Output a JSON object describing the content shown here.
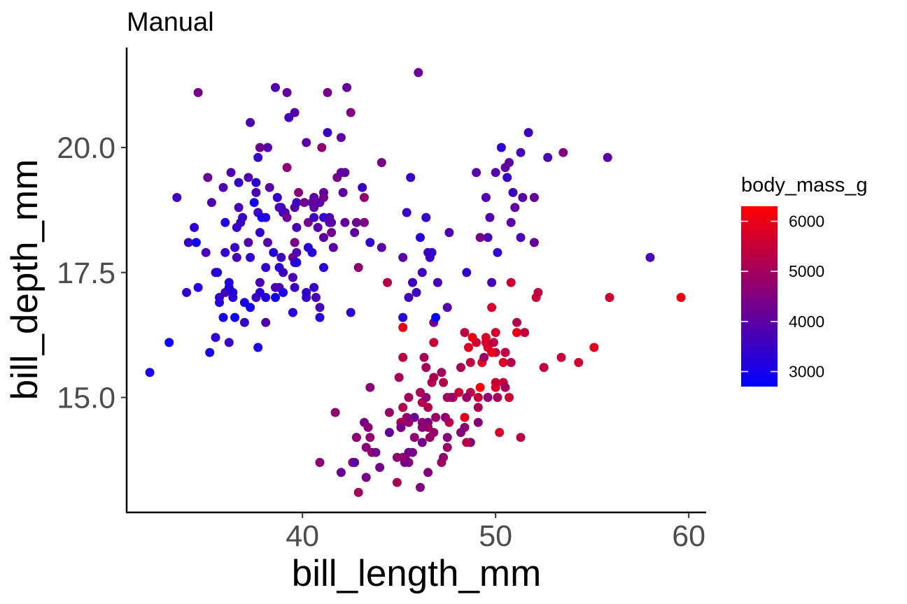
{
  "chart_data": {
    "type": "scatter",
    "title": "Manual",
    "xlabel": "bill_length_mm",
    "ylabel": "bill_depth_mm",
    "xlim": [
      30.9,
      60.9
    ],
    "ylim": [
      12.7,
      22.0
    ],
    "x_ticks": [
      {
        "value": 40,
        "label": "40"
      },
      {
        "value": 50,
        "label": "50"
      },
      {
        "value": 60,
        "label": "60"
      }
    ],
    "y_ticks": [
      {
        "value": 15.0,
        "label": "15.0"
      },
      {
        "value": 17.5,
        "label": "17.5"
      },
      {
        "value": 20.0,
        "label": "20.0"
      }
    ],
    "grid": false,
    "color_scale": {
      "variable": "body_mass_g",
      "low_color": "#0000ff",
      "high_color": "#ff0000",
      "range": [
        2700,
        6300
      ],
      "breaks": [
        {
          "value": 3000,
          "label": "3000"
        },
        {
          "value": 4000,
          "label": "4000"
        },
        {
          "value": 5000,
          "label": "5000"
        },
        {
          "value": 6000,
          "label": "6000"
        }
      ],
      "legend_position": "right"
    },
    "points": [
      [
        32.1,
        15.5,
        3050
      ],
      [
        33.1,
        16.1,
        2900
      ],
      [
        33.5,
        19.0,
        3600
      ],
      [
        34.0,
        17.1,
        3400
      ],
      [
        34.1,
        18.1,
        3475
      ],
      [
        34.4,
        18.4,
        3325
      ],
      [
        34.5,
        18.1,
        2900
      ],
      [
        34.6,
        21.1,
        4400
      ],
      [
        34.6,
        17.2,
        3200
      ],
      [
        35.0,
        17.9,
        3725
      ],
      [
        35.1,
        19.4,
        4200
      ],
      [
        35.2,
        15.9,
        3050
      ],
      [
        35.3,
        18.9,
        3800
      ],
      [
        35.5,
        16.2,
        3350
      ],
      [
        35.5,
        17.5,
        3700
      ],
      [
        35.6,
        17.5,
        3175
      ],
      [
        35.7,
        16.9,
        3150
      ],
      [
        35.7,
        17.0,
        3350
      ],
      [
        35.9,
        16.6,
        3050
      ],
      [
        35.9,
        19.2,
        3800
      ],
      [
        36.0,
        18.5,
        3100
      ],
      [
        36.0,
        17.9,
        3450
      ],
      [
        36.0,
        17.1,
        3700
      ],
      [
        36.2,
        16.1,
        3550
      ],
      [
        36.2,
        17.3,
        3300
      ],
      [
        36.2,
        17.2,
        3150
      ],
      [
        36.3,
        19.5,
        3800
      ],
      [
        36.4,
        17.0,
        3325
      ],
      [
        36.4,
        17.1,
        3250
      ],
      [
        36.5,
        16.6,
        2850
      ],
      [
        36.5,
        18.0,
        3500
      ],
      [
        36.6,
        17.8,
        3700
      ],
      [
        36.6,
        18.4,
        3475
      ],
      [
        36.7,
        19.3,
        3450
      ],
      [
        36.7,
        18.8,
        3700
      ],
      [
        36.8,
        18.5,
        3500
      ],
      [
        36.9,
        18.6,
        3500
      ],
      [
        37.0,
        16.9,
        3000
      ],
      [
        37.0,
        16.5,
        3400
      ],
      [
        37.2,
        19.4,
        3900
      ],
      [
        37.2,
        18.1,
        3900
      ],
      [
        37.3,
        17.8,
        3350
      ],
      [
        37.3,
        16.8,
        3000
      ],
      [
        37.3,
        20.5,
        3775
      ],
      [
        37.5,
        18.9,
        2975
      ],
      [
        37.6,
        19.1,
        3750
      ],
      [
        37.6,
        17.0,
        3600
      ],
      [
        37.6,
        19.3,
        3300
      ],
      [
        37.7,
        18.7,
        3600
      ],
      [
        37.7,
        16.0,
        3075
      ],
      [
        37.7,
        19.8,
        3500
      ],
      [
        37.8,
        18.3,
        3400
      ],
      [
        37.8,
        17.1,
        3300
      ],
      [
        37.8,
        17.3,
        3700
      ],
      [
        37.8,
        20.0,
        4250
      ],
      [
        37.9,
        18.6,
        3150
      ],
      [
        37.9,
        18.6,
        2925
      ],
      [
        38.1,
        18.6,
        3175
      ],
      [
        38.1,
        17.0,
        3175
      ],
      [
        38.1,
        16.5,
        3825
      ],
      [
        38.1,
        17.6,
        3425
      ],
      [
        38.2,
        18.1,
        3950
      ],
      [
        38.2,
        20.0,
        3900
      ],
      [
        38.3,
        19.2,
        3950
      ],
      [
        38.5,
        17.9,
        3200
      ],
      [
        38.6,
        21.2,
        3800
      ],
      [
        38.6,
        17.2,
        3750
      ],
      [
        38.6,
        17.0,
        2900
      ],
      [
        38.7,
        19.0,
        3450
      ],
      [
        38.8,
        17.2,
        3800
      ],
      [
        38.8,
        18.8,
        3900
      ],
      [
        38.8,
        17.6,
        3275
      ],
      [
        38.9,
        17.8,
        3625
      ],
      [
        38.9,
        18.8,
        3600
      ],
      [
        39.0,
        17.1,
        3050
      ],
      [
        39.0,
        17.5,
        3550
      ],
      [
        39.0,
        18.7,
        3650
      ],
      [
        39.1,
        18.7,
        3750
      ],
      [
        39.2,
        19.6,
        4675
      ],
      [
        39.2,
        21.1,
        4150
      ],
      [
        39.2,
        18.6,
        4250
      ],
      [
        39.3,
        20.6,
        3650
      ],
      [
        39.5,
        17.4,
        3800
      ],
      [
        39.5,
        16.7,
        3250
      ],
      [
        39.5,
        17.8,
        4300
      ],
      [
        39.6,
        17.7,
        3500
      ],
      [
        39.6,
        18.8,
        3950
      ],
      [
        39.6,
        17.2,
        3550
      ],
      [
        39.6,
        18.1,
        4450
      ],
      [
        39.6,
        20.7,
        3900
      ],
      [
        39.7,
        17.9,
        3850
      ],
      [
        39.7,
        18.4,
        3750
      ],
      [
        39.7,
        17.7,
        3200
      ],
      [
        39.7,
        18.9,
        3550
      ],
      [
        39.8,
        19.1,
        4650
      ],
      [
        40.1,
        18.9,
        4300
      ],
      [
        40.2,
        17.0,
        3450
      ],
      [
        40.2,
        20.1,
        3975
      ],
      [
        40.2,
        17.1,
        3400
      ],
      [
        40.3,
        18.0,
        3250
      ],
      [
        40.3,
        18.5,
        4350
      ],
      [
        40.5,
        17.9,
        3200
      ],
      [
        40.5,
        18.9,
        3950
      ],
      [
        40.6,
        18.6,
        3550
      ],
      [
        40.6,
        19.0,
        4000
      ],
      [
        40.6,
        17.2,
        3475
      ],
      [
        40.6,
        18.8,
        3950
      ],
      [
        40.7,
        17.0,
        3725
      ],
      [
        40.8,
        18.4,
        3900
      ],
      [
        40.8,
        18.9,
        4300
      ],
      [
        40.9,
        18.9,
        3900
      ],
      [
        40.9,
        16.6,
        3200
      ],
      [
        40.9,
        16.8,
        3700
      ],
      [
        41.0,
        20.0,
        4725
      ],
      [
        41.1,
        18.2,
        4050
      ],
      [
        41.1,
        19.1,
        4100
      ],
      [
        41.1,
        17.6,
        3325
      ],
      [
        41.1,
        18.6,
        3450
      ],
      [
        41.1,
        19.0,
        4300
      ],
      [
        41.3,
        20.3,
        3550
      ],
      [
        41.3,
        21.1,
        4400
      ],
      [
        41.4,
        18.6,
        3700
      ],
      [
        41.4,
        18.5,
        3875
      ],
      [
        41.5,
        18.3,
        4300
      ],
      [
        41.5,
        18.5,
        4000
      ],
      [
        41.6,
        18.0,
        3950
      ],
      [
        41.8,
        19.4,
        4450
      ],
      [
        42.0,
        20.2,
        4050
      ],
      [
        42.0,
        19.5,
        4050
      ],
      [
        42.1,
        19.1,
        4000
      ],
      [
        42.2,
        18.5,
        4100
      ],
      [
        42.2,
        19.5,
        4050
      ],
      [
        42.3,
        21.2,
        4150
      ],
      [
        42.5,
        20.7,
        4500
      ],
      [
        42.5,
        16.7,
        3350
      ],
      [
        42.7,
        18.3,
        4075
      ],
      [
        42.8,
        18.5,
        4250
      ],
      [
        42.9,
        17.6,
        4700
      ],
      [
        43.1,
        19.2,
        3500
      ],
      [
        43.2,
        18.5,
        4450
      ],
      [
        43.2,
        19.0,
        4775
      ],
      [
        43.5,
        18.1,
        3400
      ],
      [
        44.1,
        18.0,
        4000
      ],
      [
        44.1,
        19.7,
        4400
      ],
      [
        45.2,
        17.8,
        3950
      ],
      [
        45.4,
        18.7,
        3525
      ],
      [
        45.5,
        17.0,
        3625
      ],
      [
        45.6,
        19.4,
        3525
      ],
      [
        45.7,
        17.3,
        3600
      ],
      [
        45.9,
        17.1,
        3575
      ],
      [
        46.0,
        21.5,
        4200
      ],
      [
        46.1,
        18.2,
        3250
      ],
      [
        46.2,
        17.5,
        3650
      ],
      [
        46.4,
        18.6,
        3450
      ],
      [
        46.6,
        17.8,
        3500
      ],
      [
        46.7,
        17.9,
        3300
      ],
      [
        46.8,
        16.5,
        4400
      ],
      [
        46.9,
        16.6,
        2700
      ],
      [
        47.0,
        17.3,
        3700
      ],
      [
        47.5,
        16.8,
        3900
      ],
      [
        49.5,
        19.0,
        3800
      ],
      [
        49.6,
        18.2,
        3775
      ],
      [
        50.0,
        19.5,
        3900
      ],
      [
        50.3,
        20.0,
        3300
      ],
      [
        50.5,
        19.6,
        4050
      ],
      [
        50.6,
        19.4,
        3525
      ],
      [
        50.8,
        18.5,
        4000
      ],
      [
        51.3,
        19.9,
        3700
      ],
      [
        51.3,
        18.2,
        3750
      ],
      [
        51.4,
        19.0,
        3950
      ],
      [
        52.0,
        18.1,
        4100
      ],
      [
        52.0,
        19.0,
        4150
      ],
      [
        52.7,
        19.8,
        3725
      ],
      [
        53.5,
        19.9,
        4500
      ],
      [
        55.8,
        19.8,
        4000
      ],
      [
        58.0,
        17.8,
        3700
      ],
      [
        49.2,
        18.2,
        4400
      ],
      [
        48.5,
        17.5,
        3400
      ],
      [
        49.7,
        18.6,
        3850
      ],
      [
        51.7,
        20.3,
        3600
      ],
      [
        51.0,
        18.8,
        4100
      ],
      [
        45.2,
        16.6,
        3250
      ],
      [
        46.5,
        17.9,
        3500
      ],
      [
        50.9,
        19.1,
        3550
      ],
      [
        50.1,
        17.9,
        3400
      ],
      [
        49.0,
        19.5,
        3950
      ],
      [
        50.7,
        19.7,
        4050
      ],
      [
        47.6,
        18.3,
        3850
      ],
      [
        49.8,
        17.3,
        3675
      ],
      [
        45.1,
        14.5,
        5000
      ],
      [
        45.1,
        14.4,
        4400
      ],
      [
        42.8,
        14.2,
        4700
      ],
      [
        45.5,
        13.9,
        4200
      ],
      [
        46.1,
        13.2,
        4500
      ],
      [
        50.0,
        16.3,
        5700
      ],
      [
        48.7,
        14.1,
        4450
      ],
      [
        50.0,
        15.2,
        5700
      ],
      [
        47.6,
        14.5,
        5400
      ],
      [
        46.5,
        13.5,
        4550
      ],
      [
        45.4,
        14.6,
        4800
      ],
      [
        46.7,
        15.3,
        5200
      ],
      [
        43.3,
        13.4,
        4400
      ],
      [
        46.8,
        15.4,
        5150
      ],
      [
        40.9,
        13.7,
        4650
      ],
      [
        49.0,
        16.1,
        5550
      ],
      [
        45.5,
        13.7,
        4650
      ],
      [
        48.4,
        14.6,
        5850
      ],
      [
        45.8,
        14.6,
        4200
      ],
      [
        49.3,
        15.7,
        5850
      ],
      [
        42.0,
        13.5,
        4150
      ],
      [
        49.2,
        15.2,
        6300
      ],
      [
        46.2,
        14.5,
        4800
      ],
      [
        48.7,
        15.1,
        5350
      ],
      [
        50.2,
        14.3,
        5700
      ],
      [
        45.1,
        14.5,
        5000
      ],
      [
        46.5,
        14.5,
        4400
      ],
      [
        46.3,
        15.8,
        5050
      ],
      [
        42.9,
        13.1,
        5000
      ],
      [
        46.1,
        15.1,
        5100
      ],
      [
        44.5,
        14.3,
        4100
      ],
      [
        47.8,
        15.0,
        5650
      ],
      [
        48.2,
        14.3,
        4600
      ],
      [
        50.0,
        15.3,
        5550
      ],
      [
        47.3,
        15.3,
        5250
      ],
      [
        42.8,
        14.2,
        4700
      ],
      [
        45.1,
        14.5,
        5050
      ],
      [
        59.6,
        17.0,
        6050
      ],
      [
        49.1,
        14.8,
        5150
      ],
      [
        48.4,
        16.3,
        5400
      ],
      [
        42.6,
        13.7,
        4950
      ],
      [
        44.4,
        17.3,
        5250
      ],
      [
        44.0,
        13.6,
        4350
      ],
      [
        48.7,
        15.7,
        5350
      ],
      [
        42.7,
        13.7,
        3950
      ],
      [
        49.6,
        16.0,
        5700
      ],
      [
        45.3,
        13.7,
        4300
      ],
      [
        49.6,
        15.0,
        4750
      ],
      [
        50.5,
        15.9,
        5550
      ],
      [
        43.6,
        13.9,
        4900
      ],
      [
        45.5,
        13.9,
        4200
      ],
      [
        50.5,
        15.9,
        5400
      ],
      [
        44.9,
        13.3,
        5100
      ],
      [
        45.2,
        15.8,
        5300
      ],
      [
        46.6,
        14.2,
        4850
      ],
      [
        48.5,
        14.1,
        5300
      ],
      [
        45.1,
        14.4,
        4400
      ],
      [
        50.1,
        15.0,
        5000
      ],
      [
        46.5,
        14.4,
        4900
      ],
      [
        45.0,
        15.4,
        5050
      ],
      [
        43.8,
        13.9,
        4300
      ],
      [
        45.5,
        15.0,
        5000
      ],
      [
        43.2,
        14.5,
        4450
      ],
      [
        50.4,
        15.3,
        5550
      ],
      [
        45.3,
        13.8,
        4200
      ],
      [
        46.2,
        14.9,
        5300
      ],
      [
        45.7,
        13.9,
        4400
      ],
      [
        54.3,
        15.7,
        5650
      ],
      [
        45.8,
        14.2,
        4700
      ],
      [
        49.8,
        16.8,
        5700
      ],
      [
        46.2,
        14.4,
        4650
      ],
      [
        49.5,
        16.2,
        5800
      ],
      [
        43.5,
        14.2,
        4700
      ],
      [
        50.7,
        15.0,
        5550
      ],
      [
        47.7,
        15.0,
        4750
      ],
      [
        46.4,
        15.6,
        5000
      ],
      [
        48.2,
        15.6,
        5100
      ],
      [
        46.5,
        14.8,
        5200
      ],
      [
        46.4,
        15.0,
        4700
      ],
      [
        48.6,
        16.0,
        5800
      ],
      [
        47.5,
        14.2,
        4600
      ],
      [
        51.1,
        16.3,
        6000
      ],
      [
        45.2,
        13.8,
        4750
      ],
      [
        45.2,
        16.4,
        5950
      ],
      [
        49.1,
        14.5,
        4625
      ],
      [
        52.5,
        15.6,
        5450
      ],
      [
        47.4,
        14.6,
        4725
      ],
      [
        50.0,
        15.9,
        5350
      ],
      [
        44.9,
        13.8,
        4750
      ],
      [
        50.8,
        17.3,
        5600
      ],
      [
        43.4,
        14.4,
        4600
      ],
      [
        51.3,
        14.2,
        5300
      ],
      [
        47.5,
        14.0,
        4875
      ],
      [
        52.1,
        17.0,
        5550
      ],
      [
        47.5,
        15.0,
        4950
      ],
      [
        52.2,
        17.1,
        5400
      ],
      [
        45.5,
        14.5,
        4750
      ],
      [
        49.5,
        16.1,
        5650
      ],
      [
        44.5,
        14.7,
        4850
      ],
      [
        50.8,
        15.7,
        5200
      ],
      [
        49.4,
        15.8,
        4925
      ],
      [
        46.9,
        14.6,
        4875
      ],
      [
        48.4,
        14.4,
        4625
      ],
      [
        51.1,
        16.5,
        5250
      ],
      [
        48.5,
        15.0,
        4850
      ],
      [
        55.9,
        17.0,
        5600
      ],
      [
        47.2,
        15.5,
        4975
      ],
      [
        49.1,
        15.0,
        5500
      ],
      [
        47.3,
        13.8,
        4725
      ],
      [
        46.8,
        16.1,
        5500
      ],
      [
        41.7,
        14.7,
        4700
      ],
      [
        53.4,
        15.8,
        5500
      ],
      [
        43.3,
        14.0,
        4575
      ],
      [
        48.1,
        15.1,
        5500
      ],
      [
        50.5,
        15.2,
        5000
      ],
      [
        49.8,
        15.9,
        5950
      ],
      [
        43.5,
        15.2,
        4650
      ],
      [
        51.5,
        16.3,
        5500
      ],
      [
        46.2,
        14.1,
        4375
      ],
      [
        55.1,
        16.0,
        5850
      ],
      [
        48.8,
        16.2,
        6000
      ],
      [
        47.2,
        13.7,
        4925
      ],
      [
        46.8,
        14.3,
        4850
      ],
      [
        50.4,
        15.7,
        5750
      ],
      [
        45.2,
        14.8,
        5200
      ],
      [
        49.9,
        16.1,
        5400
      ]
    ]
  }
}
